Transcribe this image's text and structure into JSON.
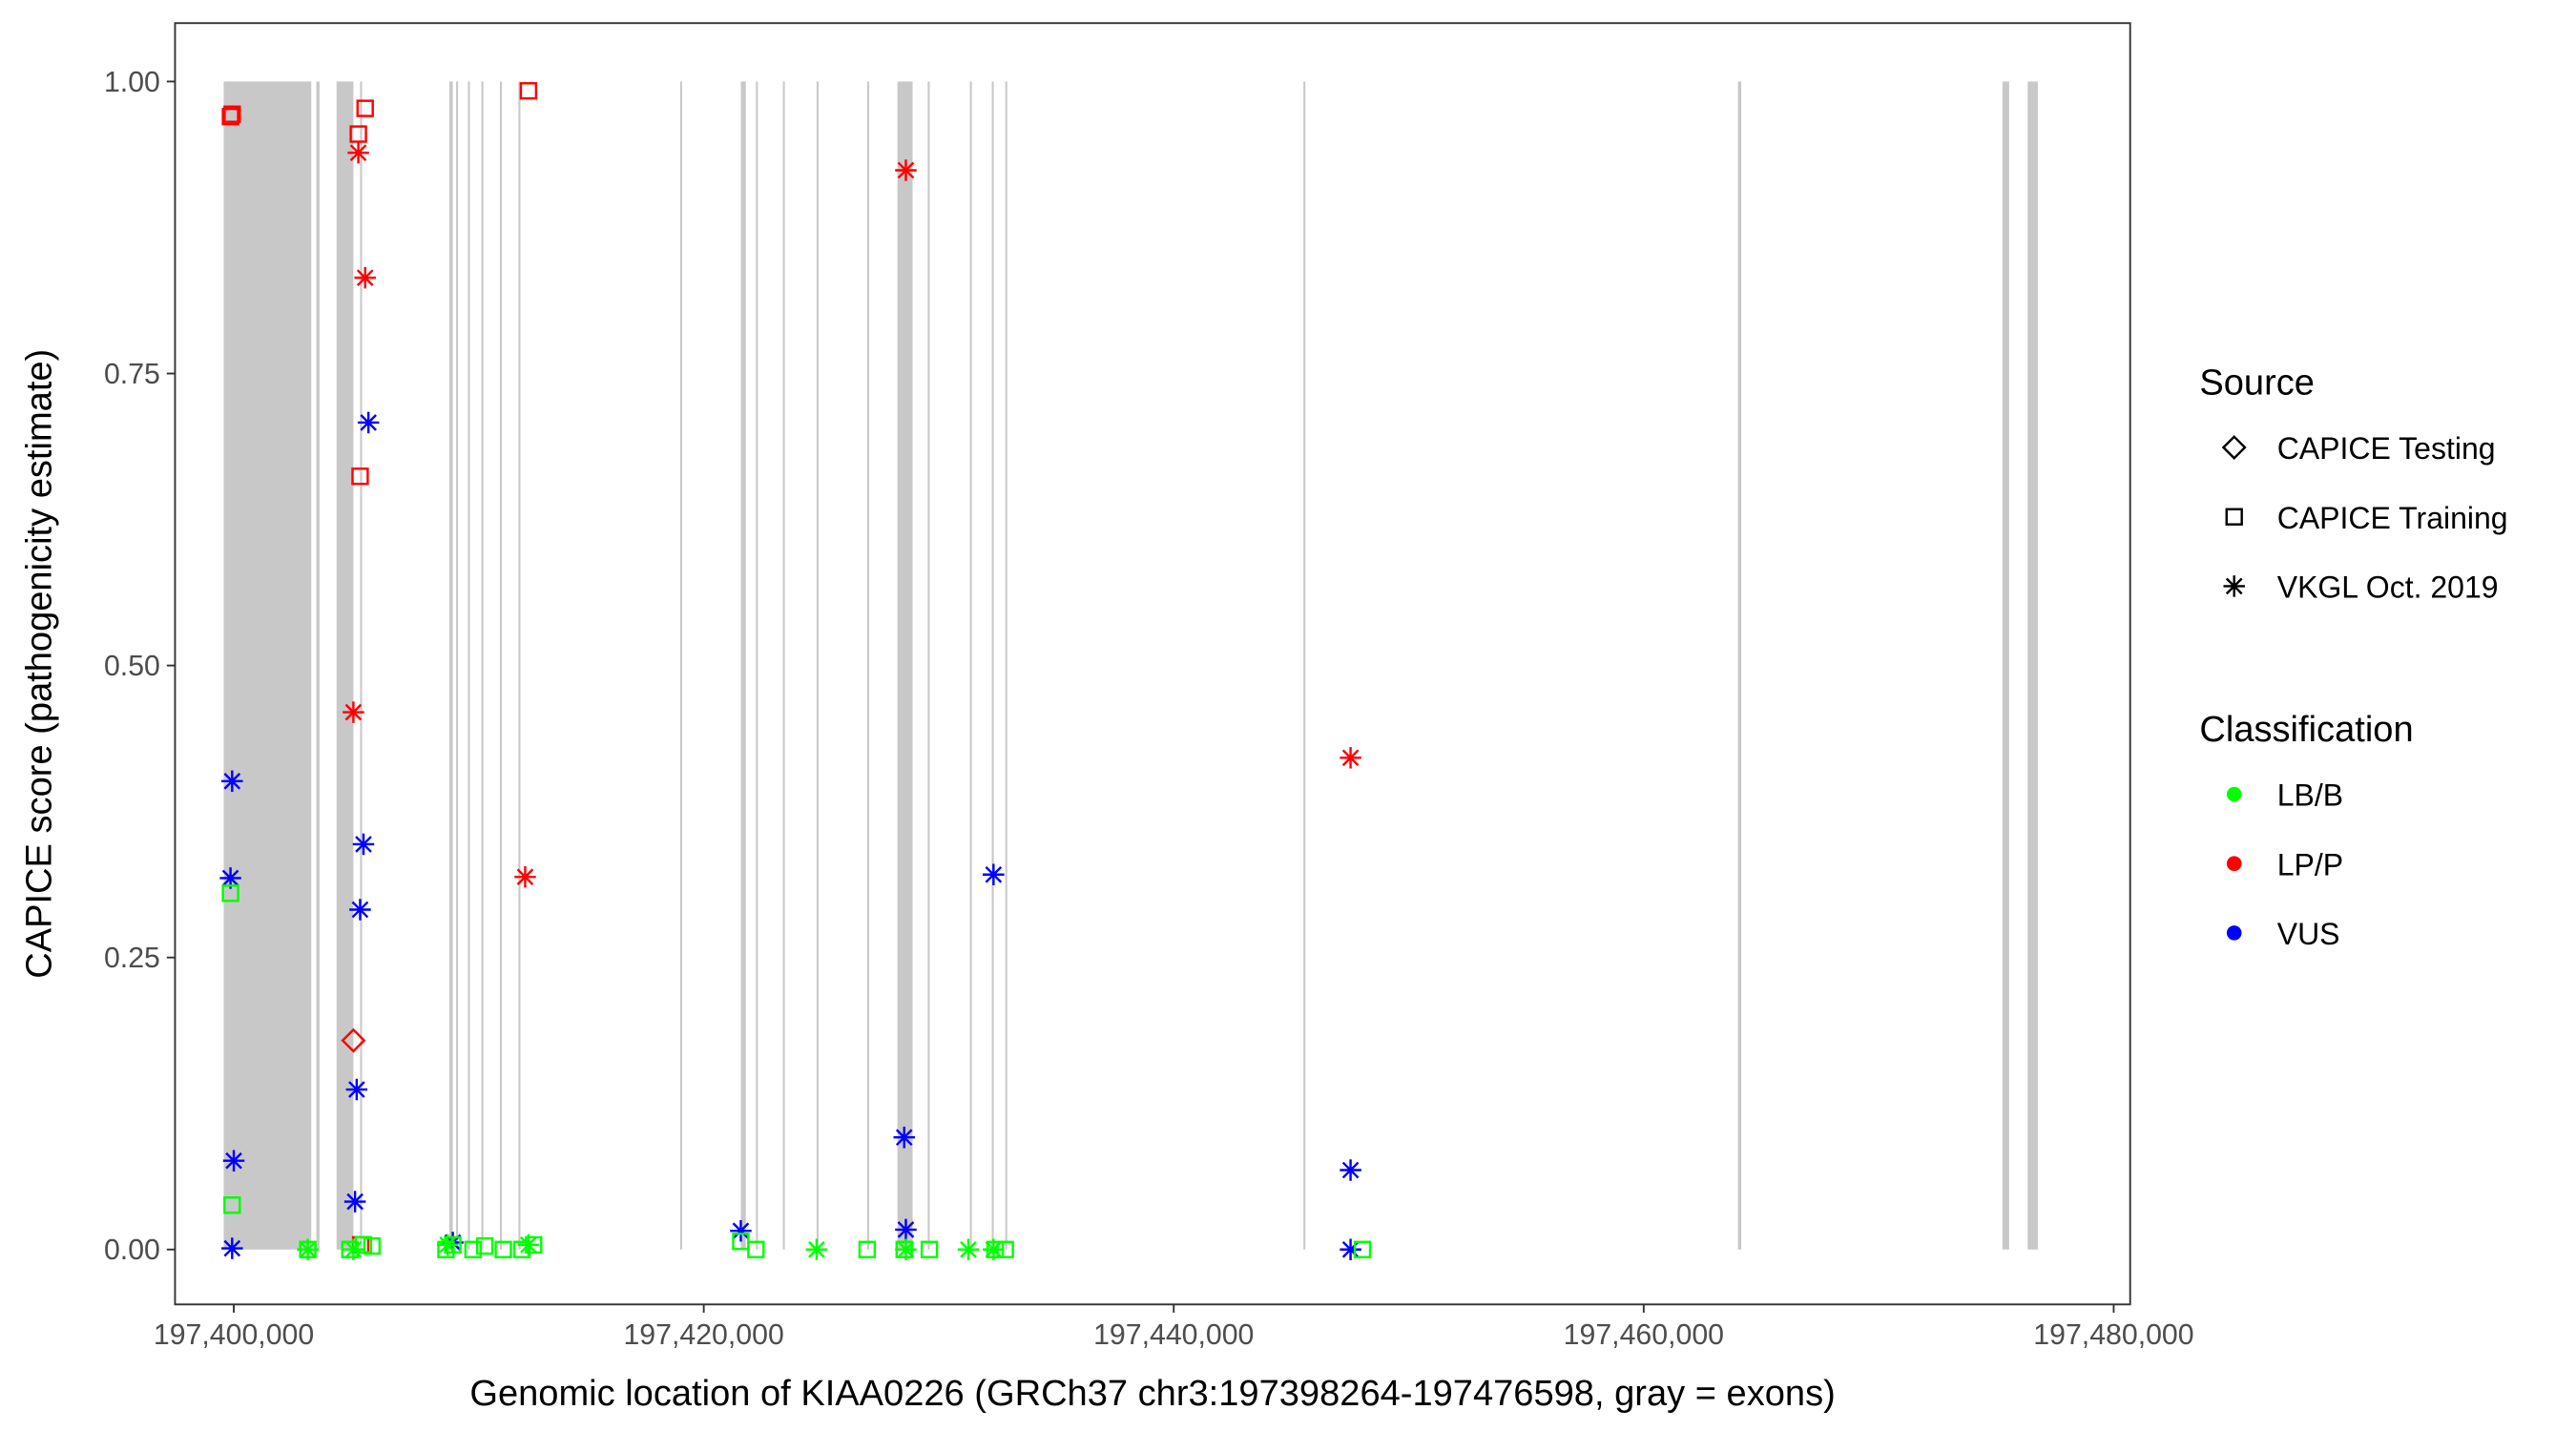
{
  "chart_data": {
    "type": "scatter",
    "xlabel": "Genomic location of KIAA0226 (GRCh37 chr3:197398264-197476598, gray = exons)",
    "ylabel": "CAPICE score (pathogenicity estimate)",
    "xlim": [
      197397500,
      197480700
    ],
    "ylim": [
      -0.047,
      1.05
    ],
    "x_ticks": [
      197400000,
      197420000,
      197440000,
      197460000,
      197480000
    ],
    "x_tick_labels": [
      "197,400,000",
      "197,420,000",
      "197,440,000",
      "197,460,000",
      "197,480,000"
    ],
    "y_ticks": [
      0,
      0.25,
      0.5,
      0.75,
      1.0
    ],
    "y_tick_labels": [
      "0.00",
      "0.25",
      "0.50",
      "0.75",
      "1.00"
    ],
    "grid": false,
    "colors": {
      "LB/B": "#00ff00",
      "LP/P": "#ff0000",
      "VUS": "#0000ff",
      "exon": "#c8c8c8"
    },
    "exons": [
      [
        197399570,
        197403297
      ],
      [
        197403512,
        197403650
      ],
      [
        197404373,
        197405090
      ],
      [
        197405376,
        197405450
      ],
      [
        197409175,
        197409320
      ],
      [
        197409460,
        197409530
      ],
      [
        197409964,
        197410035
      ],
      [
        197410537,
        197410610
      ],
      [
        197411325,
        197411390
      ],
      [
        197412114,
        197412180
      ],
      [
        197418995,
        197419060
      ],
      [
        197421576,
        197421790
      ],
      [
        197422220,
        197422290
      ],
      [
        197423367,
        197423430
      ],
      [
        197424801,
        197424870
      ],
      [
        197426952,
        197427010
      ],
      [
        197428242,
        197428887
      ],
      [
        197429530,
        197429600
      ],
      [
        197431324,
        197431390
      ],
      [
        197432256,
        197432320
      ],
      [
        197432830,
        197432900
      ],
      [
        197445517,
        197445590
      ],
      [
        197464011,
        197464150
      ],
      [
        197475264,
        197475550
      ],
      [
        197476340,
        197476770
      ]
    ],
    "legend": {
      "placement": "right",
      "source_title": "Source",
      "source": [
        {
          "label": "CAPICE Testing",
          "shape": "diamond"
        },
        {
          "label": "CAPICE Training",
          "shape": "square"
        },
        {
          "label": "VKGL Oct. 2019",
          "shape": "asterisk"
        }
      ],
      "class_title": "Classification",
      "classes": [
        "LB/B",
        "LP/P",
        "VUS"
      ]
    },
    "points": [
      {
        "x": 197399930,
        "y": 0.972,
        "source": "CAPICE Training",
        "class": "LP/P"
      },
      {
        "x": 197399860,
        "y": 0.97,
        "source": "CAPICE Training",
        "class": "LP/P"
      },
      {
        "x": 197405590,
        "y": 0.977,
        "source": "CAPICE Training",
        "class": "LP/P"
      },
      {
        "x": 197405300,
        "y": 0.955,
        "source": "CAPICE Training",
        "class": "LP/P"
      },
      {
        "x": 197412540,
        "y": 0.992,
        "source": "CAPICE Training",
        "class": "LP/P"
      },
      {
        "x": 197405376,
        "y": 0.662,
        "source": "CAPICE Training",
        "class": "LP/P"
      },
      {
        "x": 197405400,
        "y": 0.004,
        "source": "CAPICE Training",
        "class": "LP/P"
      },
      {
        "x": 197405300,
        "y": 0.939,
        "source": "VKGL Oct. 2019",
        "class": "LP/P"
      },
      {
        "x": 197405590,
        "y": 0.832,
        "source": "VKGL Oct. 2019",
        "class": "LP/P"
      },
      {
        "x": 197405090,
        "y": 0.46,
        "source": "VKGL Oct. 2019",
        "class": "LP/P"
      },
      {
        "x": 197412400,
        "y": 0.319,
        "source": "VKGL Oct. 2019",
        "class": "LP/P"
      },
      {
        "x": 197428600,
        "y": 0.924,
        "source": "VKGL Oct. 2019",
        "class": "LP/P"
      },
      {
        "x": 197447525,
        "y": 0.421,
        "source": "VKGL Oct. 2019",
        "class": "LP/P"
      },
      {
        "x": 197405090,
        "y": 0.179,
        "source": "CAPICE Testing",
        "class": "LP/P"
      },
      {
        "x": 197399930,
        "y": 0.401,
        "source": "VKGL Oct. 2019",
        "class": "VUS"
      },
      {
        "x": 197399860,
        "y": 0.318,
        "source": "VKGL Oct. 2019",
        "class": "VUS"
      },
      {
        "x": 197400000,
        "y": 0.076,
        "source": "VKGL Oct. 2019",
        "class": "VUS"
      },
      {
        "x": 197399930,
        "y": 0.001,
        "source": "VKGL Oct. 2019",
        "class": "VUS"
      },
      {
        "x": 197405730,
        "y": 0.708,
        "source": "VKGL Oct. 2019",
        "class": "VUS"
      },
      {
        "x": 197405520,
        "y": 0.347,
        "source": "VKGL Oct. 2019",
        "class": "VUS"
      },
      {
        "x": 197405376,
        "y": 0.291,
        "source": "VKGL Oct. 2019",
        "class": "VUS"
      },
      {
        "x": 197405230,
        "y": 0.137,
        "source": "VKGL Oct. 2019",
        "class": "VUS"
      },
      {
        "x": 197405160,
        "y": 0.041,
        "source": "VKGL Oct. 2019",
        "class": "VUS"
      },
      {
        "x": 197409320,
        "y": 0.006,
        "source": "VKGL Oct. 2019",
        "class": "VUS"
      },
      {
        "x": 197421576,
        "y": 0.016,
        "source": "VKGL Oct. 2019",
        "class": "VUS"
      },
      {
        "x": 197428530,
        "y": 0.096,
        "source": "VKGL Oct. 2019",
        "class": "VUS"
      },
      {
        "x": 197428600,
        "y": 0.017,
        "source": "VKGL Oct. 2019",
        "class": "VUS"
      },
      {
        "x": 197432330,
        "y": 0.321,
        "source": "VKGL Oct. 2019",
        "class": "VUS"
      },
      {
        "x": 197447525,
        "y": 0.068,
        "source": "VKGL Oct. 2019",
        "class": "VUS"
      },
      {
        "x": 197447525,
        "y": 0.0,
        "source": "VKGL Oct. 2019",
        "class": "VUS"
      },
      {
        "x": 197399860,
        "y": 0.305,
        "source": "CAPICE Training",
        "class": "LB/B"
      },
      {
        "x": 197399930,
        "y": 0.038,
        "source": "CAPICE Training",
        "class": "LB/B"
      },
      {
        "x": 197403150,
        "y": 0.0,
        "source": "CAPICE Training",
        "class": "LB/B"
      },
      {
        "x": 197404940,
        "y": 0.0,
        "source": "CAPICE Training",
        "class": "LB/B"
      },
      {
        "x": 197405520,
        "y": 0.004,
        "source": "CAPICE Training",
        "class": "LB/B"
      },
      {
        "x": 197405880,
        "y": 0.003,
        "source": "CAPICE Training",
        "class": "LB/B"
      },
      {
        "x": 197409030,
        "y": 0.0,
        "source": "CAPICE Training",
        "class": "LB/B"
      },
      {
        "x": 197409320,
        "y": 0.004,
        "source": "CAPICE Training",
        "class": "LB/B"
      },
      {
        "x": 197410180,
        "y": 0.0,
        "source": "CAPICE Training",
        "class": "LB/B"
      },
      {
        "x": 197410680,
        "y": 0.003,
        "source": "CAPICE Training",
        "class": "LB/B"
      },
      {
        "x": 197411470,
        "y": 0.0,
        "source": "CAPICE Training",
        "class": "LB/B"
      },
      {
        "x": 197412260,
        "y": 0.0,
        "source": "CAPICE Training",
        "class": "LB/B"
      },
      {
        "x": 197412760,
        "y": 0.004,
        "source": "CAPICE Training",
        "class": "LB/B"
      },
      {
        "x": 197421576,
        "y": 0.007,
        "source": "CAPICE Training",
        "class": "LB/B"
      },
      {
        "x": 197422220,
        "y": 0.0,
        "source": "CAPICE Training",
        "class": "LB/B"
      },
      {
        "x": 197426952,
        "y": 0.0,
        "source": "CAPICE Training",
        "class": "LB/B"
      },
      {
        "x": 197428530,
        "y": 0.0,
        "source": "CAPICE Training",
        "class": "LB/B"
      },
      {
        "x": 197429600,
        "y": 0.0,
        "source": "CAPICE Training",
        "class": "LB/B"
      },
      {
        "x": 197432400,
        "y": 0.0,
        "source": "CAPICE Training",
        "class": "LB/B"
      },
      {
        "x": 197432830,
        "y": 0.0,
        "source": "CAPICE Training",
        "class": "LB/B"
      },
      {
        "x": 197448030,
        "y": 0.0,
        "source": "CAPICE Training",
        "class": "LB/B"
      },
      {
        "x": 197403150,
        "y": 0.0,
        "source": "VKGL Oct. 2019",
        "class": "LB/B"
      },
      {
        "x": 197405090,
        "y": 0.0,
        "source": "VKGL Oct. 2019",
        "class": "LB/B"
      },
      {
        "x": 197409100,
        "y": 0.004,
        "source": "VKGL Oct. 2019",
        "class": "LB/B"
      },
      {
        "x": 197412540,
        "y": 0.004,
        "source": "VKGL Oct. 2019",
        "class": "LB/B"
      },
      {
        "x": 197424801,
        "y": 0.0,
        "source": "VKGL Oct. 2019",
        "class": "LB/B"
      },
      {
        "x": 197428600,
        "y": 0.0,
        "source": "VKGL Oct. 2019",
        "class": "LB/B"
      },
      {
        "x": 197431260,
        "y": 0.0,
        "source": "VKGL Oct. 2019",
        "class": "LB/B"
      },
      {
        "x": 197432330,
        "y": 0.0,
        "source": "VKGL Oct. 2019",
        "class": "LB/B"
      }
    ]
  }
}
